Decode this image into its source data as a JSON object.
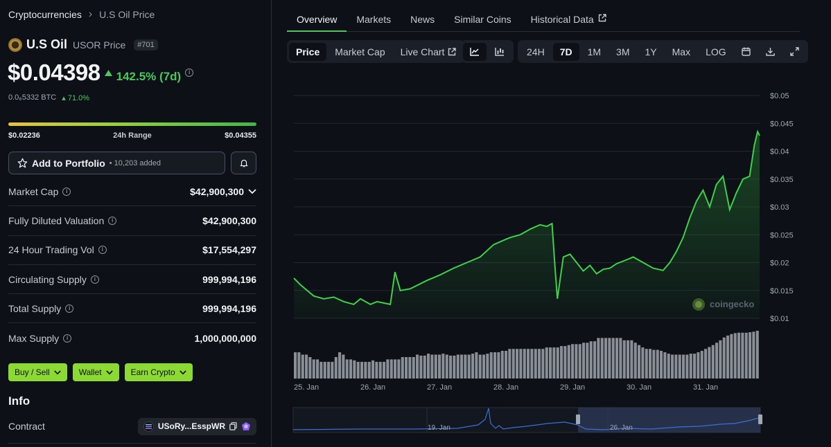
{
  "breadcrumb": {
    "root": "Cryptocurrencies",
    "current": "U.S Oil Price"
  },
  "coin": {
    "name": "U.S Oil",
    "symbol_label": "USOR Price",
    "rank": "#701",
    "price": "$0.04398",
    "change": "142.5% (7d)",
    "btc_price": "0.0₆5332 BTC",
    "btc_change": "71.0%",
    "range_low": "$0.02236",
    "range_label": "24h Range",
    "range_high": "$0.04355"
  },
  "portfolio": {
    "label": "Add to Portfolio",
    "count": "• 10,203 added"
  },
  "stats": [
    {
      "label": "Market Cap",
      "value": "$42,900,300"
    },
    {
      "label": "Fully Diluted Valuation",
      "value": "$42,900,300"
    },
    {
      "label": "24 Hour Trading Vol",
      "value": "$17,554,297"
    },
    {
      "label": "Circulating Supply",
      "value": "999,994,196"
    },
    {
      "label": "Total Supply",
      "value": "999,994,196"
    },
    {
      "label": "Max Supply",
      "value": "1,000,000,000"
    }
  ],
  "actions": {
    "buy_sell": "Buy / Sell",
    "wallet": "Wallet",
    "earn": "Earn Crypto"
  },
  "info": {
    "heading": "Info",
    "contract_label": "Contract",
    "contract_value": "USoRy...EsspWR"
  },
  "tabs": [
    {
      "label": "Overview"
    },
    {
      "label": "Markets"
    },
    {
      "label": "News"
    },
    {
      "label": "Similar Coins"
    },
    {
      "label": "Historical Data"
    }
  ],
  "chart_toolbar": {
    "price": "Price",
    "market_cap": "Market Cap",
    "live_chart": "Live Chart",
    "ranges": [
      "24H",
      "7D",
      "1M",
      "3M",
      "1Y",
      "Max",
      "LOG"
    ],
    "active_range": "7D"
  },
  "watermark": "coingecko",
  "colors": {
    "up": "#4cc85c",
    "accent_button": "#8dd934",
    "line": "#3fd14a",
    "volume": "#8a8f97",
    "navigator": "#3b6fd8"
  },
  "chart_data": {
    "type": "line",
    "title": "",
    "ylabel": "",
    "y_ticks": [
      "$0.05",
      "$0.045",
      "$0.04",
      "$0.035",
      "$0.03",
      "$0.025",
      "$0.02",
      "$0.015",
      "$0.01"
    ],
    "ylim": [
      0.01,
      0.05
    ],
    "x_ticks": [
      "25. Jan",
      "26. Jan",
      "27. Jan",
      "28. Jan",
      "29. Jan",
      "30. Jan",
      "31. Jan"
    ],
    "x_range_days": [
      0,
      7
    ],
    "series": [
      {
        "x": [
          0.0,
          0.1,
          0.2,
          0.3,
          0.45,
          0.6,
          0.75,
          0.9,
          1.0,
          1.15,
          1.25,
          1.45,
          1.52,
          1.6,
          1.75,
          2.0,
          2.2,
          2.4,
          2.6,
          2.8,
          3.0,
          3.15,
          3.25,
          3.4,
          3.55,
          3.7,
          3.8,
          3.88,
          3.92,
          3.96,
          4.05,
          4.15,
          4.25,
          4.35,
          4.45,
          4.55,
          4.65,
          4.75,
          4.85,
          5.0,
          5.1,
          5.25,
          5.4,
          5.55,
          5.65,
          5.75,
          5.85,
          5.95,
          6.05,
          6.15,
          6.25,
          6.35,
          6.45,
          6.55,
          6.65,
          6.75,
          6.85,
          6.92,
          6.97,
          7.0
        ],
        "y": [
          0.0172,
          0.016,
          0.015,
          0.014,
          0.0135,
          0.0138,
          0.013,
          0.0125,
          0.0135,
          0.0125,
          0.013,
          0.0125,
          0.0183,
          0.015,
          0.0153,
          0.0168,
          0.0178,
          0.019,
          0.02,
          0.021,
          0.0232,
          0.024,
          0.0245,
          0.025,
          0.026,
          0.0268,
          0.0265,
          0.027,
          0.02,
          0.0135,
          0.021,
          0.0215,
          0.02,
          0.0185,
          0.0195,
          0.018,
          0.0188,
          0.019,
          0.0198,
          0.0205,
          0.021,
          0.02,
          0.019,
          0.0186,
          0.02,
          0.022,
          0.0245,
          0.028,
          0.031,
          0.033,
          0.03,
          0.034,
          0.0355,
          0.0295,
          0.0325,
          0.035,
          0.0355,
          0.041,
          0.0435,
          0.0428
        ]
      }
    ],
    "volume": [
      0.55,
      0.55,
      0.5,
      0.5,
      0.45,
      0.4,
      0.4,
      0.35,
      0.35,
      0.35,
      0.35,
      0.45,
      0.55,
      0.5,
      0.4,
      0.4,
      0.38,
      0.35,
      0.35,
      0.35,
      0.35,
      0.38,
      0.35,
      0.35,
      0.35,
      0.4,
      0.4,
      0.4,
      0.4,
      0.45,
      0.45,
      0.45,
      0.45,
      0.5,
      0.48,
      0.48,
      0.52,
      0.5,
      0.5,
      0.5,
      0.52,
      0.5,
      0.48,
      0.48,
      0.5,
      0.5,
      0.5,
      0.5,
      0.52,
      0.55,
      0.5,
      0.5,
      0.52,
      0.55,
      0.55,
      0.55,
      0.58,
      0.58,
      0.62,
      0.62,
      0.62,
      0.62,
      0.62,
      0.62,
      0.62,
      0.62,
      0.62,
      0.62,
      0.65,
      0.65,
      0.65,
      0.65,
      0.68,
      0.68,
      0.7,
      0.72,
      0.72,
      0.72,
      0.75,
      0.75,
      0.78,
      0.78,
      0.85,
      0.85,
      0.85,
      0.85,
      0.85,
      0.85,
      0.85,
      0.8,
      0.8,
      0.8,
      0.75,
      0.7,
      0.65,
      0.62,
      0.62,
      0.6,
      0.6,
      0.58,
      0.55,
      0.52,
      0.5,
      0.5,
      0.5,
      0.5,
      0.5,
      0.52,
      0.52,
      0.55,
      0.58,
      0.62,
      0.66,
      0.7,
      0.75,
      0.8,
      0.86,
      0.9,
      0.93,
      0.95,
      0.96,
      0.96,
      0.96,
      0.97,
      0.98,
      1.0
    ],
    "navigator_x_ticks": [
      "19. Jan",
      "26. Jan"
    ]
  }
}
